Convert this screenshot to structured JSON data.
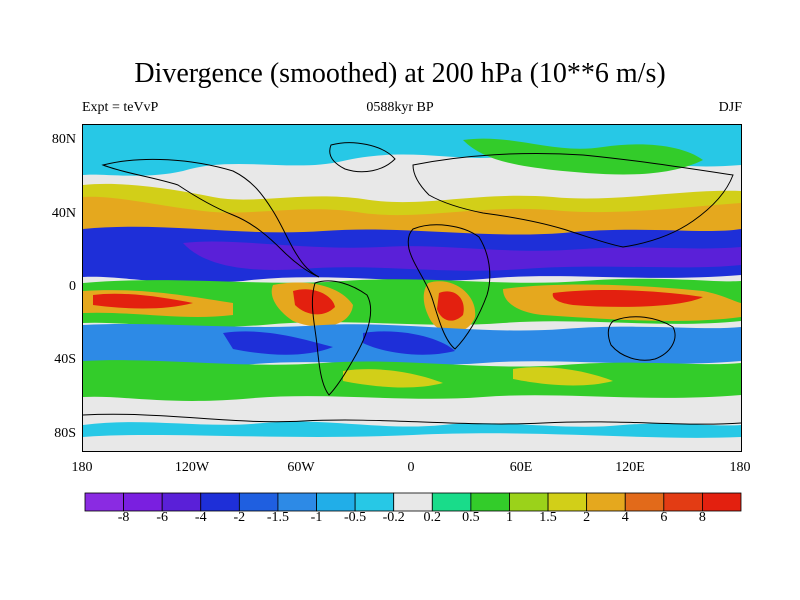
{
  "title": "Divergence (smoothed) at 200 hPa (10**6 m/s)",
  "subtitle_left": "Expt = teVvP",
  "subtitle_center": "0588kyr BP",
  "subtitle_right": "DJF",
  "y_ticks": [
    "80N",
    "40N",
    "0",
    "40S",
    "80S"
  ],
  "x_ticks": [
    "180",
    "120W",
    "60W",
    "0",
    "60E",
    "120E",
    "180"
  ],
  "colorbar": {
    "colors": [
      "#8a2be2",
      "#7a1fe0",
      "#5a20d8",
      "#1e2fd8",
      "#1f5fe0",
      "#2d8ae6",
      "#21aee8",
      "#27c8e6",
      "#e8e8e8",
      "#19dc8a",
      "#33cc2a",
      "#9bd21a",
      "#d2cf18",
      "#e5a81e",
      "#e26a1a",
      "#e33c14",
      "#e3200f"
    ],
    "labels": [
      "-8",
      "-6",
      "-4",
      "-2",
      "-1.5",
      "-1",
      "-0.5",
      "-0.2",
      "0.2",
      "0.5",
      "1",
      "1.5",
      "2",
      "4",
      "6",
      "8"
    ]
  },
  "colors": {
    "neutral": "#e8e8e8",
    "divergence_strong": "#e3200f",
    "divergence_moderate": "#e5a81e",
    "divergence_weak": "#33cc2a",
    "convergence_weak": "#21aee8",
    "convergence_moderate": "#1e2fd8",
    "convergence_strong": "#5a20d8"
  }
}
